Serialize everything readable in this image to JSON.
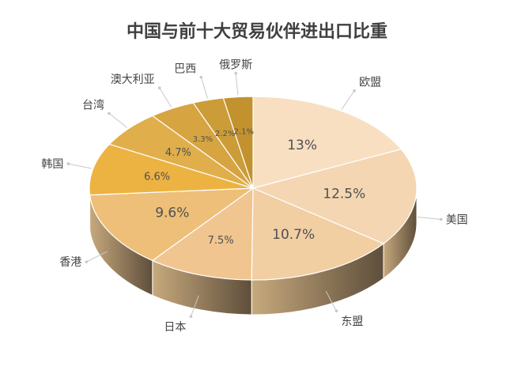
{
  "chart_data": {
    "type": "pie",
    "title": "中国与前十大贸易伙伴进出口比重",
    "categories": [
      "欧盟",
      "美国",
      "东盟",
      "日本",
      "香港",
      "韩国",
      "台湾",
      "澳大利亚",
      "巴西",
      "俄罗斯"
    ],
    "values": [
      13,
      12.5,
      10.7,
      7.5,
      9.6,
      6.6,
      4.7,
      3.3,
      2.2,
      2.1
    ],
    "value_labels": [
      "13%",
      "12.5%",
      "10.7%",
      "7.5%",
      "9.6%",
      "6.6%",
      "4.7%",
      "3.3%",
      "2.2%",
      "2.1%"
    ],
    "colors": [
      "#f8dfc2",
      "#f4d6b2",
      "#f2ceA3",
      "#f0c590",
      "#eebf78",
      "#ecb342",
      "#e0ae4a",
      "#d6a440",
      "#cc9c38",
      "#c1922e"
    ],
    "side_color_light": "#c7a97d",
    "side_color_dark": "#5e4e3b",
    "legend": "none",
    "style": "3d-pie"
  }
}
